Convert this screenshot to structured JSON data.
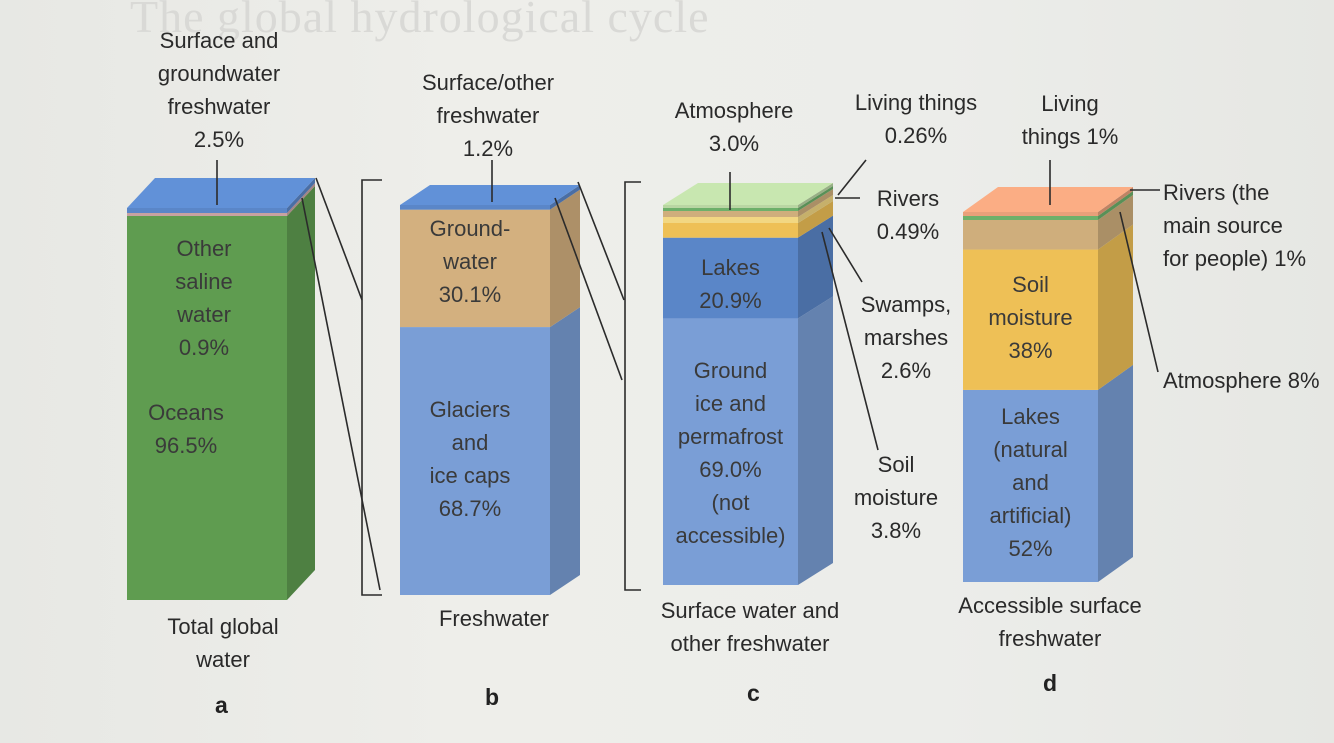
{
  "background_heading": "The global hydrological cycle",
  "chart_data": [
    {
      "panel": "a",
      "type": "stacked-bar",
      "xlabel": "Total global water",
      "segments": [
        {
          "name": "Oceans",
          "value": 96.5,
          "color": "#5f9c50"
        },
        {
          "name": "Other saline water",
          "value": 0.9,
          "color": "#c7a2a2"
        },
        {
          "name": "Surface and groundwater freshwater",
          "value": 2.5,
          "color": "#5a86c8"
        }
      ],
      "labels": {
        "top": "Surface and groundwater freshwater 2.5%",
        "top_lines": [
          "Surface and",
          "groundwater",
          "freshwater",
          "2.5%"
        ],
        "other": [
          "Other",
          "saline",
          "water",
          "0.9%"
        ],
        "oceans": [
          "Oceans",
          "96.5%"
        ],
        "x": [
          "Total global",
          "water"
        ]
      }
    },
    {
      "panel": "b",
      "type": "stacked-bar",
      "xlabel": "Freshwater",
      "segments": [
        {
          "name": "Glaciers and ice caps",
          "value": 68.7,
          "color": "#7a9ed6"
        },
        {
          "name": "Ground-water",
          "value": 30.1,
          "color": "#d3b07f"
        },
        {
          "name": "Surface/other freshwater",
          "value": 1.2,
          "color": "#5a86c8"
        }
      ],
      "labels": {
        "top_lines": [
          "Surface/other",
          "freshwater",
          "1.2%"
        ],
        "ground": [
          "Ground-",
          "water",
          "30.1%"
        ],
        "glaciers": [
          "Glaciers",
          "and",
          "ice caps",
          "68.7%"
        ],
        "x": [
          "Freshwater"
        ]
      }
    },
    {
      "panel": "c",
      "type": "stacked-bar",
      "xlabel": "Surface water and other freshwater",
      "segments": [
        {
          "name": "Ground ice and permafrost (not accessible)",
          "value": 69.0,
          "color": "#7a9ed6"
        },
        {
          "name": "Lakes",
          "value": 20.9,
          "color": "#5a86c8"
        },
        {
          "name": "Soil moisture",
          "value": 3.8,
          "color": "#eec056"
        },
        {
          "name": "Swamps, marshes",
          "value": 2.6,
          "color": "#f2d782"
        },
        {
          "name": "Atmosphere",
          "value": 3.0,
          "color": "#cfae7c"
        },
        {
          "name": "Rivers",
          "value": 0.49,
          "color": "#6db06a"
        },
        {
          "name": "Living things",
          "value": 0.26,
          "color": "#b9d6a3"
        }
      ],
      "labels": {
        "atmosphere": [
          "Atmosphere",
          "3.0%"
        ],
        "living": [
          "Living things",
          "0.26%"
        ],
        "rivers": [
          "Rivers",
          "0.49%"
        ],
        "lakes": [
          "Lakes",
          "20.9%"
        ],
        "swamps": [
          "Swamps,",
          "marshes",
          "2.6%"
        ],
        "ground_ice": [
          "Ground",
          "ice and",
          "permafrost",
          "69.0%",
          "(not",
          "accessible)"
        ],
        "soil": [
          "Soil",
          "moisture",
          "3.8%"
        ],
        "x": [
          "Surface water and",
          "other freshwater"
        ]
      }
    },
    {
      "panel": "d",
      "type": "stacked-bar",
      "xlabel": "Accessible surface freshwater",
      "segments": [
        {
          "name": "Lakes (natural and artificial)",
          "value": 52,
          "color": "#7a9ed6"
        },
        {
          "name": "Soil moisture",
          "value": 38,
          "color": "#eec056"
        },
        {
          "name": "Atmosphere",
          "value": 8,
          "color": "#cfae7c"
        },
        {
          "name": "Rivers (the main source for people)",
          "value": 1,
          "color": "#6db06a"
        },
        {
          "name": "Living things",
          "value": 1,
          "color": "#e8a07a"
        }
      ],
      "labels": {
        "living": [
          "Living",
          "things 1%"
        ],
        "rivers": [
          "Rivers (the",
          "main source",
          "for people) 1%"
        ],
        "soil": [
          "Soil",
          "moisture",
          "38%"
        ],
        "atmosphere": [
          "Atmosphere 8%"
        ],
        "lakes": [
          "Lakes",
          "(natural",
          "and",
          "artificial)",
          "52%"
        ],
        "x": [
          "Accessible surface",
          "freshwater"
        ]
      }
    }
  ],
  "panel_letters": [
    "a",
    "b",
    "c",
    "d"
  ]
}
